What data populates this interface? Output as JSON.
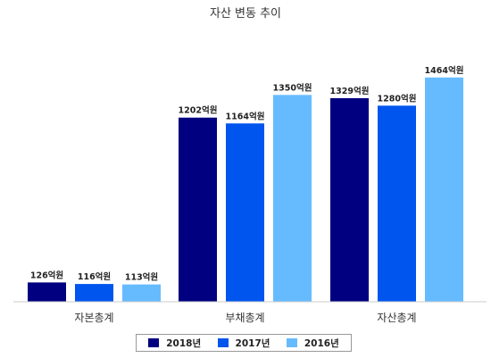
{
  "chart_data": {
    "type": "bar",
    "title": "자산 변동 추이",
    "categories": [
      "자본총계",
      "부채총계",
      "자산총계"
    ],
    "series": [
      {
        "name": "2018년",
        "color": "#000080",
        "values": [
          126,
          1202,
          1329
        ],
        "labels": [
          "126억원",
          "1202억원",
          "1329억원"
        ]
      },
      {
        "name": "2017년",
        "color": "#0055ee",
        "values": [
          116,
          1164,
          1280
        ],
        "labels": [
          "116억원",
          "1164억원",
          "1280억원"
        ]
      },
      {
        "name": "2016년",
        "color": "#66bbff",
        "values": [
          113,
          1350,
          1464
        ],
        "labels": [
          "113억원",
          "1350억원",
          "1464억원"
        ]
      }
    ],
    "unit": "억원",
    "ylim": [
      0,
      1600
    ],
    "grid": false,
    "legend_position": "bottom"
  }
}
